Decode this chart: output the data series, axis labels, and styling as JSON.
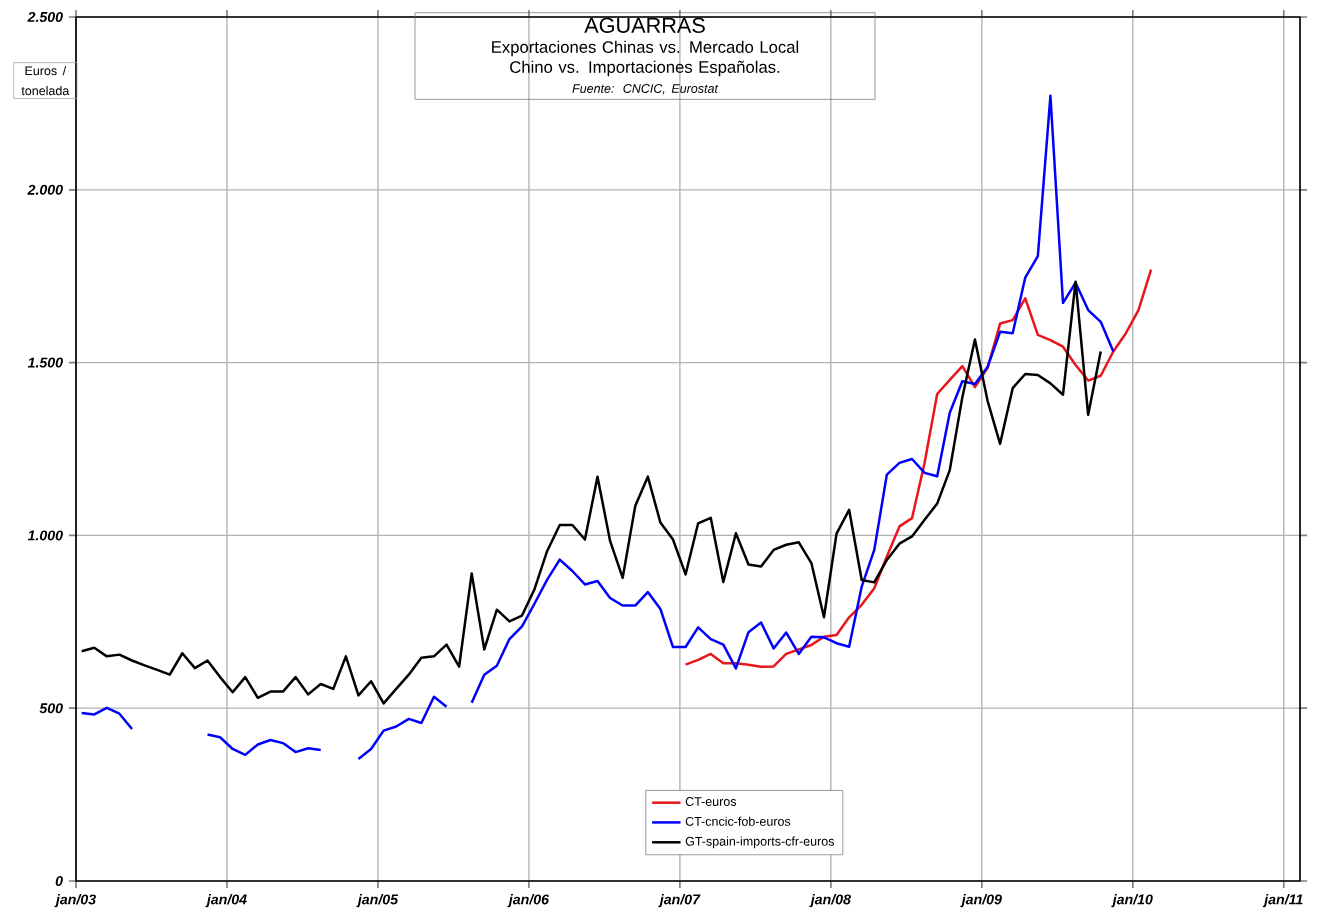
{
  "chart_data": {
    "type": "line",
    "title": "AGUARRAS",
    "subtitle": "Exportaciones Chinas vs. Mercado Local Chino vs. Importaciones Españolas.",
    "ylabel": "Euros / tonelada",
    "annotations": [
      "Fuente: CNCIC, Eurostat"
    ],
    "x": [
      "2003-01-15",
      "2003-02-15",
      "2003-03-15",
      "2003-04-15",
      "2003-05-15",
      "2003-06-15",
      "2003-07-15",
      "2003-08-15",
      "2003-09-15",
      "2003-10-15",
      "2003-11-15",
      "2003-12-15",
      "2004-01-15",
      "2004-02-15",
      "2004-03-15",
      "2004-04-15",
      "2004-05-15",
      "2004-06-15",
      "2004-07-15",
      "2004-08-15",
      "2004-09-15",
      "2004-10-15",
      "2004-11-15",
      "2004-12-15",
      "2005-01-15",
      "2005-02-15",
      "2005-03-15",
      "2005-04-15",
      "2005-05-15",
      "2005-06-15",
      "2005-07-15",
      "2005-08-15",
      "2005-09-15",
      "2005-10-15",
      "2005-11-15",
      "2005-12-15",
      "2006-01-15",
      "2006-02-15",
      "2006-03-15",
      "2006-04-15",
      "2006-05-15",
      "2006-06-15",
      "2006-07-15",
      "2006-08-15",
      "2006-09-15",
      "2006-10-15",
      "2006-11-15",
      "2006-12-15",
      "2007-01-15",
      "2007-02-15",
      "2007-03-15",
      "2007-04-15",
      "2007-05-15",
      "2007-06-15",
      "2007-07-15",
      "2007-08-15",
      "2007-09-15",
      "2007-10-15",
      "2007-11-15",
      "2007-12-15",
      "2008-01-15",
      "2008-02-15",
      "2008-03-15",
      "2008-04-15",
      "2008-05-15",
      "2008-06-15",
      "2008-07-15",
      "2008-08-15",
      "2008-09-15",
      "2008-10-15",
      "2008-11-15",
      "2008-12-15",
      "2009-01-15",
      "2009-02-15",
      "2009-03-15",
      "2009-04-15",
      "2009-05-15",
      "2009-06-15",
      "2009-07-15",
      "2009-08-15",
      "2009-09-15",
      "2009-10-15",
      "2009-11-15",
      "2009-12-15",
      "2010-01-15",
      "2010-02-15"
    ],
    "series": [
      {
        "name": "CT-euros",
        "color": "#e8161b",
        "values": [
          null,
          null,
          null,
          null,
          null,
          null,
          null,
          null,
          null,
          null,
          null,
          null,
          null,
          null,
          null,
          null,
          null,
          null,
          null,
          null,
          null,
          null,
          null,
          null,
          null,
          null,
          null,
          null,
          null,
          null,
          null,
          null,
          null,
          null,
          null,
          null,
          null,
          null,
          null,
          null,
          null,
          null,
          null,
          null,
          null,
          null,
          null,
          null,
          626,
          640,
          657,
          630,
          630,
          626,
          620,
          621,
          657,
          670,
          683,
          707,
          712,
          763,
          799,
          847,
          939,
          1026,
          1050,
          1210,
          1409,
          1450,
          1490,
          1429,
          1484,
          1613,
          1623,
          1686,
          1580,
          1565,
          1546,
          1493,
          1448,
          1462,
          1532,
          1585,
          1652,
          1769
        ]
      },
      {
        "name": "CT-cncic-fob-euros",
        "color": "#0000ff",
        "values": [
          486,
          482,
          501,
          484,
          440,
          null,
          null,
          null,
          null,
          null,
          424,
          416,
          382,
          365,
          395,
          408,
          399,
          373,
          384,
          379,
          null,
          null,
          353,
          382,
          435,
          447,
          469,
          457,
          533,
          504,
          null,
          516,
          597,
          623,
          700,
          737,
          803,
          872,
          930,
          897,
          858,
          868,
          819,
          797,
          797,
          836,
          787,
          677,
          677,
          734,
          700,
          684,
          615,
          720,
          748,
          673,
          719,
          657,
          707,
          705,
          688,
          678,
          852,
          958,
          1176,
          1210,
          1221,
          1181,
          1171,
          1355,
          1446,
          1438,
          1487,
          1589,
          1585,
          1746,
          1808,
          2272,
          1673,
          1731,
          1652,
          1618,
          1532,
          null,
          null,
          null
        ]
      },
      {
        "name": "GT-spain-imports-cfr-euros",
        "color": "#000000",
        "values": [
          665,
          675,
          650,
          655,
          638,
          624,
          611,
          597,
          659,
          616,
          638,
          590,
          546,
          590,
          530,
          548,
          548,
          590,
          540,
          570,
          556,
          650,
          537,
          578,
          514,
          556,
          597,
          646,
          650,
          684,
          620,
          890,
          670,
          785,
          751,
          768,
          845,
          955,
          1030,
          1030,
          988,
          1170,
          984,
          877,
          1085,
          1170,
          1037,
          988,
          887,
          1035,
          1051,
          865,
          1006,
          916,
          910,
          958,
          973,
          980,
          920,
          763,
          1005,
          1074,
          871,
          864,
          929,
          976,
          997,
          1045,
          1092,
          1189,
          1400,
          1567,
          1390,
          1265,
          1426,
          1467,
          1464,
          1440,
          1407,
          1734,
          1349,
          1532,
          null,
          null,
          null,
          null
        ]
      }
    ],
    "xlim": [
      "2003-01-01",
      "2011-02-10"
    ],
    "xticks": [
      {
        "value": "2003-01",
        "label": "jan/03"
      },
      {
        "value": "2004-01",
        "label": "jan/04"
      },
      {
        "value": "2005-01",
        "label": "jan/05"
      },
      {
        "value": "2006-01",
        "label": "jan/06"
      },
      {
        "value": "2007-01",
        "label": "jan/07"
      },
      {
        "value": "2008-01",
        "label": "jan/08"
      },
      {
        "value": "2009-01",
        "label": "jan/09"
      },
      {
        "value": "2010-01",
        "label": "jan/10"
      },
      {
        "value": "2011-01",
        "label": "jan/11"
      }
    ],
    "ylim": [
      0,
      2500
    ],
    "yticks": [
      0,
      500,
      {
        "value": 1000,
        "label": "1.000"
      },
      {
        "value": 1500,
        "label": "1.500"
      },
      {
        "value": 2000,
        "label": "2.000"
      },
      {
        "value": 2500,
        "label": "2.500"
      }
    ],
    "grid": true,
    "legend": "bottom"
  }
}
